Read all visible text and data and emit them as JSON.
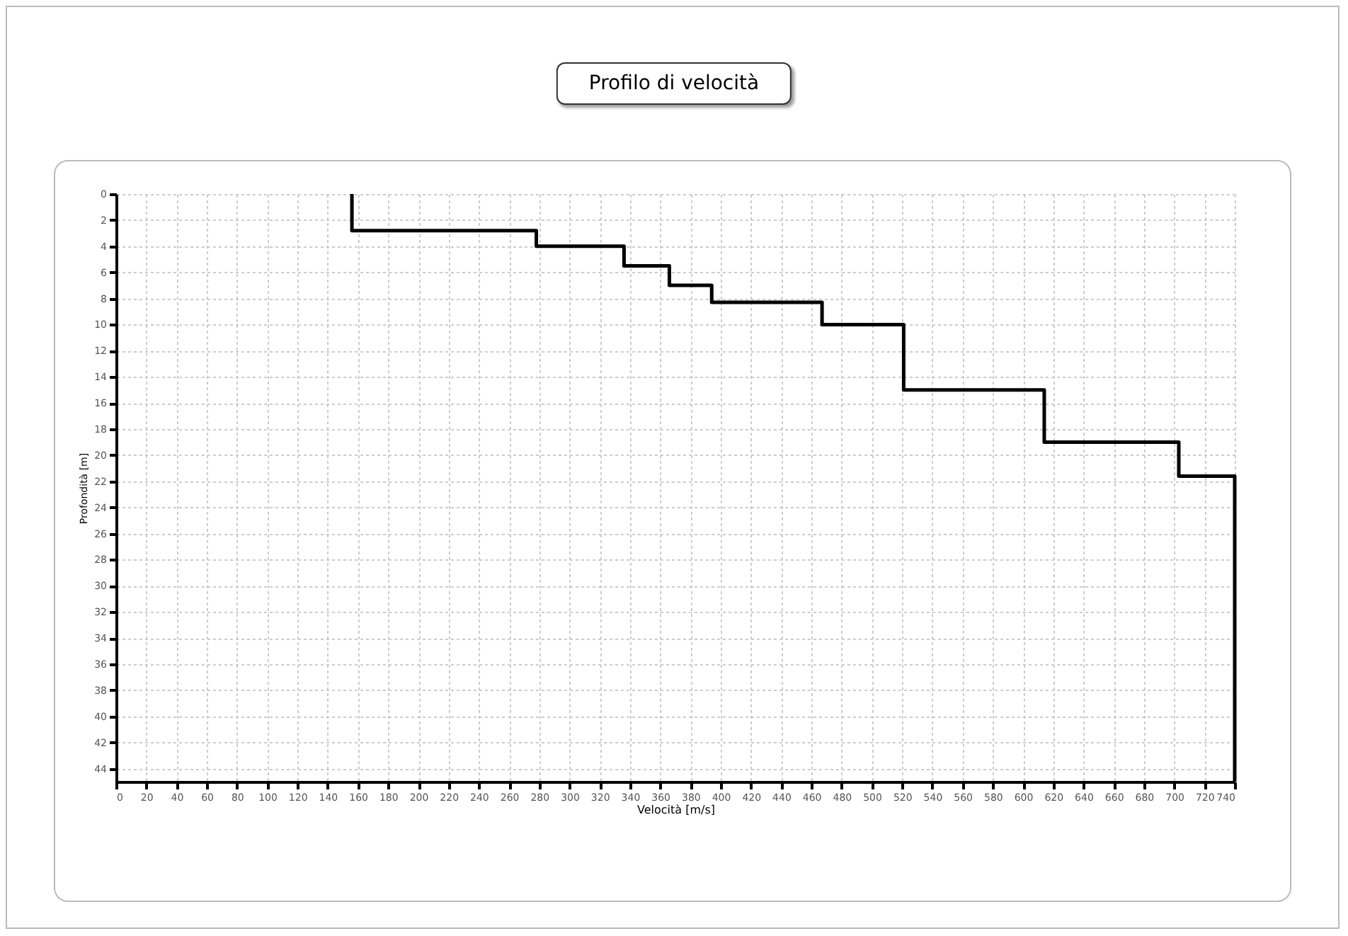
{
  "chart_data": {
    "type": "line",
    "title": "Profilo di velocità",
    "xlabel": "Velocità [m/s]",
    "ylabel": "Profondità [m]",
    "series": [
      {
        "color": "#000000",
        "x": [
          156,
          156,
          278,
          278,
          336,
          336,
          366,
          366,
          394,
          394,
          467,
          467,
          521,
          521,
          614,
          614,
          703,
          703,
          740,
          740
        ],
        "values": [
          0,
          2.8,
          2.8,
          4,
          4,
          5.5,
          5.5,
          7,
          7,
          8.3,
          8.3,
          10,
          10,
          15,
          15,
          19,
          19,
          21.6,
          21.6,
          45
        ]
      }
    ],
    "xlim": [
      0,
      740
    ],
    "xticks": [
      0,
      20,
      40,
      60,
      80,
      100,
      120,
      140,
      160,
      180,
      200,
      220,
      240,
      260,
      280,
      300,
      320,
      340,
      360,
      380,
      400,
      420,
      440,
      460,
      480,
      500,
      520,
      540,
      560,
      580,
      600,
      620,
      640,
      660,
      680,
      700,
      720,
      740
    ],
    "ylim": [
      45,
      0
    ],
    "yticks": [
      0,
      2,
      4,
      6,
      8,
      10,
      12,
      14,
      16,
      18,
      20,
      22,
      24,
      26,
      28,
      30,
      32,
      34,
      36,
      38,
      40,
      42,
      44
    ],
    "grid": true,
    "line_style": "solid",
    "marker": "none"
  }
}
